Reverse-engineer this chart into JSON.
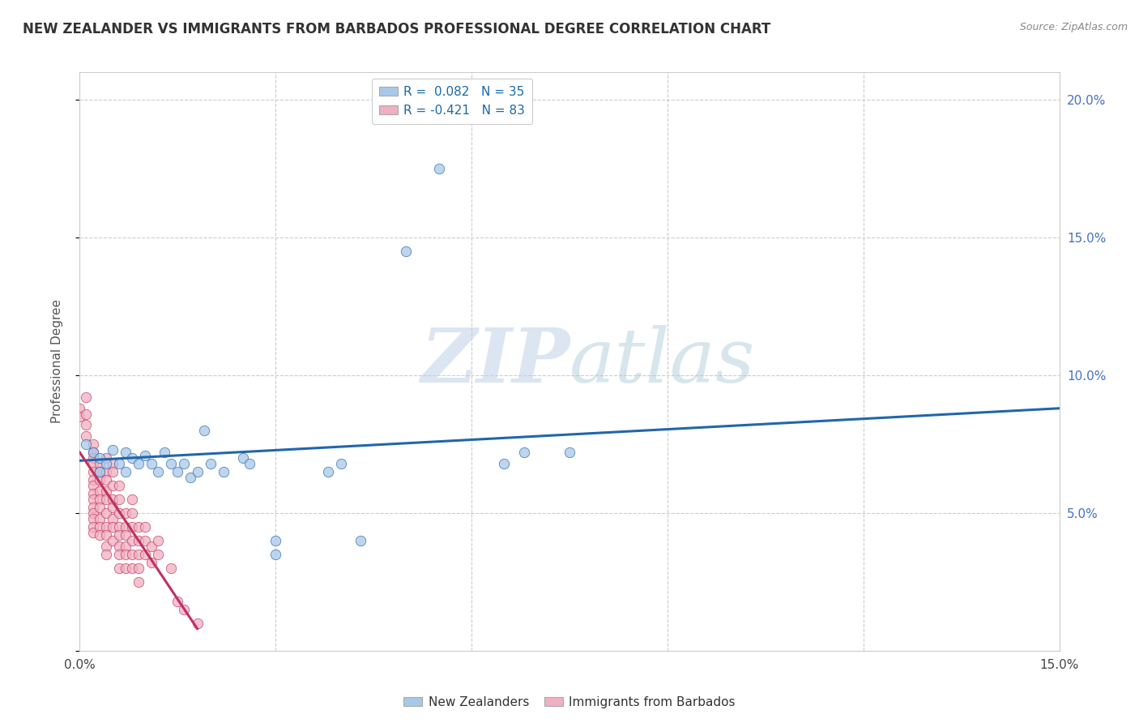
{
  "title": "NEW ZEALANDER VS IMMIGRANTS FROM BARBADOS PROFESSIONAL DEGREE CORRELATION CHART",
  "source": "Source: ZipAtlas.com",
  "ylabel": "Professional Degree",
  "watermark_zip": "ZIP",
  "watermark_atlas": "atlas",
  "xlim": [
    0.0,
    0.15
  ],
  "ylim": [
    0.0,
    0.21
  ],
  "xticks": [
    0.0,
    0.03,
    0.06,
    0.09,
    0.12,
    0.15
  ],
  "yticks": [
    0.0,
    0.05,
    0.1,
    0.15,
    0.2
  ],
  "legend_r1": "R =  0.082   N = 35",
  "legend_r2": "R = -0.421   N = 83",
  "blue_color": "#a8c8e8",
  "pink_color": "#f0b0c0",
  "line_blue": "#2166ac",
  "line_pink": "#c03060",
  "background": "#ffffff",
  "grid_color": "#cccccc",
  "blue_scatter": [
    [
      0.001,
      0.075
    ],
    [
      0.002,
      0.072
    ],
    [
      0.003,
      0.07
    ],
    [
      0.003,
      0.065
    ],
    [
      0.004,
      0.068
    ],
    [
      0.005,
      0.073
    ],
    [
      0.006,
      0.068
    ],
    [
      0.007,
      0.065
    ],
    [
      0.007,
      0.072
    ],
    [
      0.008,
      0.07
    ],
    [
      0.009,
      0.068
    ],
    [
      0.01,
      0.071
    ],
    [
      0.011,
      0.068
    ],
    [
      0.012,
      0.065
    ],
    [
      0.013,
      0.072
    ],
    [
      0.014,
      0.068
    ],
    [
      0.015,
      0.065
    ],
    [
      0.016,
      0.068
    ],
    [
      0.017,
      0.063
    ],
    [
      0.018,
      0.065
    ],
    [
      0.019,
      0.08
    ],
    [
      0.02,
      0.068
    ],
    [
      0.022,
      0.065
    ],
    [
      0.025,
      0.07
    ],
    [
      0.026,
      0.068
    ],
    [
      0.03,
      0.04
    ],
    [
      0.03,
      0.035
    ],
    [
      0.038,
      0.065
    ],
    [
      0.04,
      0.068
    ],
    [
      0.043,
      0.04
    ],
    [
      0.065,
      0.068
    ],
    [
      0.068,
      0.072
    ],
    [
      0.075,
      0.072
    ],
    [
      0.055,
      0.175
    ],
    [
      0.05,
      0.145
    ]
  ],
  "pink_scatter": [
    [
      0.0,
      0.088
    ],
    [
      0.0,
      0.085
    ],
    [
      0.001,
      0.092
    ],
    [
      0.001,
      0.086
    ],
    [
      0.001,
      0.082
    ],
    [
      0.001,
      0.078
    ],
    [
      0.002,
      0.075
    ],
    [
      0.002,
      0.072
    ],
    [
      0.002,
      0.07
    ],
    [
      0.002,
      0.068
    ],
    [
      0.002,
      0.065
    ],
    [
      0.002,
      0.062
    ],
    [
      0.002,
      0.06
    ],
    [
      0.002,
      0.057
    ],
    [
      0.002,
      0.055
    ],
    [
      0.002,
      0.052
    ],
    [
      0.002,
      0.05
    ],
    [
      0.002,
      0.048
    ],
    [
      0.002,
      0.045
    ],
    [
      0.002,
      0.043
    ],
    [
      0.003,
      0.068
    ],
    [
      0.003,
      0.065
    ],
    [
      0.003,
      0.062
    ],
    [
      0.003,
      0.058
    ],
    [
      0.003,
      0.055
    ],
    [
      0.003,
      0.052
    ],
    [
      0.003,
      0.048
    ],
    [
      0.003,
      0.045
    ],
    [
      0.003,
      0.042
    ],
    [
      0.004,
      0.07
    ],
    [
      0.004,
      0.065
    ],
    [
      0.004,
      0.062
    ],
    [
      0.004,
      0.058
    ],
    [
      0.004,
      0.055
    ],
    [
      0.004,
      0.05
    ],
    [
      0.004,
      0.045
    ],
    [
      0.004,
      0.042
    ],
    [
      0.004,
      0.038
    ],
    [
      0.004,
      0.035
    ],
    [
      0.005,
      0.068
    ],
    [
      0.005,
      0.065
    ],
    [
      0.005,
      0.06
    ],
    [
      0.005,
      0.055
    ],
    [
      0.005,
      0.052
    ],
    [
      0.005,
      0.048
    ],
    [
      0.005,
      0.045
    ],
    [
      0.005,
      0.04
    ],
    [
      0.006,
      0.06
    ],
    [
      0.006,
      0.055
    ],
    [
      0.006,
      0.05
    ],
    [
      0.006,
      0.045
    ],
    [
      0.006,
      0.042
    ],
    [
      0.006,
      0.038
    ],
    [
      0.006,
      0.035
    ],
    [
      0.006,
      0.03
    ],
    [
      0.007,
      0.05
    ],
    [
      0.007,
      0.045
    ],
    [
      0.007,
      0.042
    ],
    [
      0.007,
      0.038
    ],
    [
      0.007,
      0.035
    ],
    [
      0.007,
      0.03
    ],
    [
      0.008,
      0.055
    ],
    [
      0.008,
      0.05
    ],
    [
      0.008,
      0.045
    ],
    [
      0.008,
      0.04
    ],
    [
      0.008,
      0.035
    ],
    [
      0.008,
      0.03
    ],
    [
      0.009,
      0.045
    ],
    [
      0.009,
      0.04
    ],
    [
      0.009,
      0.035
    ],
    [
      0.009,
      0.03
    ],
    [
      0.009,
      0.025
    ],
    [
      0.01,
      0.045
    ],
    [
      0.01,
      0.04
    ],
    [
      0.01,
      0.035
    ],
    [
      0.011,
      0.038
    ],
    [
      0.011,
      0.032
    ],
    [
      0.012,
      0.04
    ],
    [
      0.012,
      0.035
    ],
    [
      0.014,
      0.03
    ],
    [
      0.015,
      0.018
    ],
    [
      0.016,
      0.015
    ],
    [
      0.018,
      0.01
    ]
  ],
  "blue_line": [
    [
      0.0,
      0.069
    ],
    [
      0.15,
      0.088
    ]
  ],
  "pink_line": [
    [
      0.0,
      0.072
    ],
    [
      0.018,
      0.008
    ]
  ]
}
